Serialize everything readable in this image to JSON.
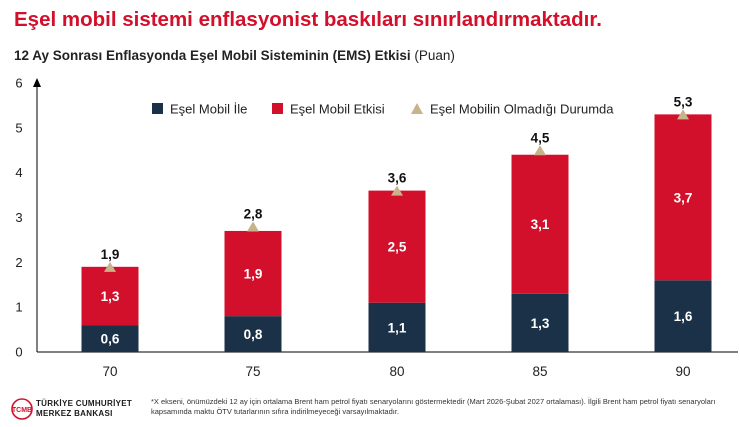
{
  "page": {
    "headline": "Eşel mobil sistemi enflasyonist baskıları sınırlandırmaktadır.",
    "subtitle": "12 Ay Sonrası Enflasyonda Eşel Mobil Sisteminin (EMS) Etkisi",
    "subtitle_unit": "(Puan)",
    "footnote": "*X ekseni, önümüzdeki 12 ay için ortalama Brent ham petrol fiyatı senaryolarını göstermektedir (Mart 2026-Şubat 2027 ortalaması). İlgili Brent ham petrol fiyatı senaryoları kapsamında maktu ÖTV tutarlarının sıfıra indirilmeyeceği varsayılmaktadır.",
    "logo": {
      "line1": "TÜRKİYE CUMHURİYET",
      "line2": "MERKEZ BANKASI",
      "mark_text": "TCMB"
    }
  },
  "colors": {
    "headline": "#d3102b",
    "series_base": "#1b3148",
    "series_effect": "#d3102b",
    "marker": "#c8b48b"
  },
  "chart_data": {
    "type": "bar",
    "stacked": true,
    "title": "12 Ay Sonrası Enflasyonda Eşel Mobil Sisteminin (EMS) Etkisi",
    "ylabel": "(Puan)",
    "xlabel": "",
    "categories": [
      "70",
      "75",
      "80",
      "85",
      "90"
    ],
    "series": [
      {
        "name": "Eşel Mobil İle",
        "values": [
          0.6,
          0.8,
          1.1,
          1.3,
          1.6
        ],
        "labels": [
          "0,6",
          "0,8",
          "1,1",
          "1,3",
          "1,6"
        ]
      },
      {
        "name": "Eşel Mobil Etkisi",
        "values": [
          1.3,
          1.9,
          2.5,
          3.1,
          3.7
        ],
        "labels": [
          "1,3",
          "1,9",
          "2,5",
          "3,1",
          "3,7"
        ]
      },
      {
        "name": "Eşel Mobilin Olmadığı Durumda",
        "kind": "marker",
        "values": [
          1.9,
          2.8,
          3.6,
          4.5,
          5.3
        ],
        "labels": [
          "1,9",
          "2,8",
          "3,6",
          "4,5",
          "5,3"
        ]
      }
    ],
    "ylim": [
      0,
      6
    ],
    "yticks": [
      "0",
      "1",
      "2",
      "3",
      "4",
      "5",
      "6"
    ],
    "legend": "top"
  }
}
